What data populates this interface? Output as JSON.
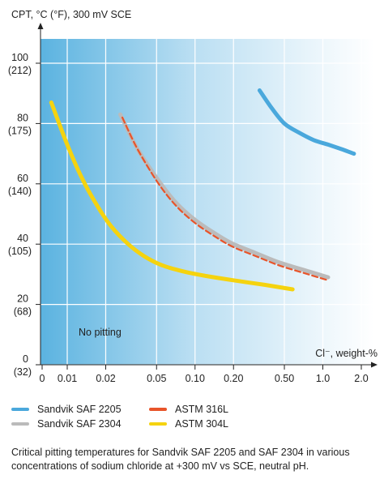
{
  "chart_data": {
    "type": "line",
    "ylabel": "CPT, °C (°F), 300 mV SCE",
    "xlabel": "Cl⁻, weight-%",
    "x_scale": "log",
    "x_ticks": [
      {
        "value": 0,
        "label": "0"
      },
      {
        "value": 0.01,
        "label": "0.01"
      },
      {
        "value": 0.02,
        "label": "0.02"
      },
      {
        "value": 0.05,
        "label": "0.05"
      },
      {
        "value": 0.1,
        "label": "0.10"
      },
      {
        "value": 0.2,
        "label": "0.20"
      },
      {
        "value": 0.5,
        "label": "0.50"
      },
      {
        "value": 1.0,
        "label": "1.0"
      },
      {
        "value": 2.0,
        "label": "2.0"
      }
    ],
    "y_ticks": [
      {
        "value": 0,
        "label": "0",
        "label2": "(32)"
      },
      {
        "value": 20,
        "label": "20",
        "label2": "(68)"
      },
      {
        "value": 40,
        "label": "40",
        "label2": "(105)"
      },
      {
        "value": 60,
        "label": "60",
        "label2": "(140)"
      },
      {
        "value": 80,
        "label": "80",
        "label2": "(175)"
      },
      {
        "value": 100,
        "label": "100",
        "label2": "(212)"
      }
    ],
    "ylim": [
      0,
      100
    ],
    "region_label": "No pitting",
    "series": [
      {
        "name": "Sandvik SAF 2205",
        "color": "#4aa8dc",
        "dashed": false,
        "x": [
          0.32,
          0.4,
          0.5,
          0.65,
          0.85,
          1.1,
          1.4,
          1.75
        ],
        "y": [
          91,
          85,
          80,
          77,
          74.5,
          73,
          71.5,
          70
        ]
      },
      {
        "name": "Sandvik SAF 2304",
        "color": "#bbbbbb",
        "dashed": false,
        "x": [
          0.026,
          0.035,
          0.05,
          0.07,
          0.1,
          0.15,
          0.2,
          0.3,
          0.45,
          0.7,
          1.1
        ],
        "y": [
          83,
          72,
          62,
          54,
          48,
          43,
          40,
          37,
          34,
          31.5,
          29
        ]
      },
      {
        "name": "ASTM 316L",
        "color": "#e8542a",
        "dashed": true,
        "x": [
          0.027,
          0.035,
          0.05,
          0.07,
          0.1,
          0.15,
          0.2,
          0.3,
          0.45,
          0.7,
          1.1
        ],
        "y": [
          82,
          72,
          61,
          53,
          47,
          42,
          39,
          36,
          33,
          30.5,
          28
        ]
      },
      {
        "name": "ASTM 304L",
        "color": "#f5d30f",
        "dashed": false,
        "x": [
          0.0075,
          0.01,
          0.013,
          0.017,
          0.022,
          0.03,
          0.04,
          0.055,
          0.08,
          0.12,
          0.2,
          0.35,
          0.58
        ],
        "y": [
          87,
          73,
          62,
          53,
          46,
          40,
          36,
          33,
          31,
          29.5,
          28,
          26.5,
          25
        ]
      }
    ]
  },
  "legend": [
    {
      "label": "Sandvik SAF 2205",
      "color": "#4aa8dc"
    },
    {
      "label": "Sandvik SAF 2304",
      "color": "#bbbbbb"
    },
    {
      "label": "ASTM 316L",
      "color": "#e8542a"
    },
    {
      "label": "ASTM 304L",
      "color": "#f5d30f"
    }
  ],
  "caption": "Critical pitting temperatures for Sandvik SAF 2205 and SAF 2304 in various concentrations of sodium chloride at +300 mV vs SCE, neutral pH."
}
